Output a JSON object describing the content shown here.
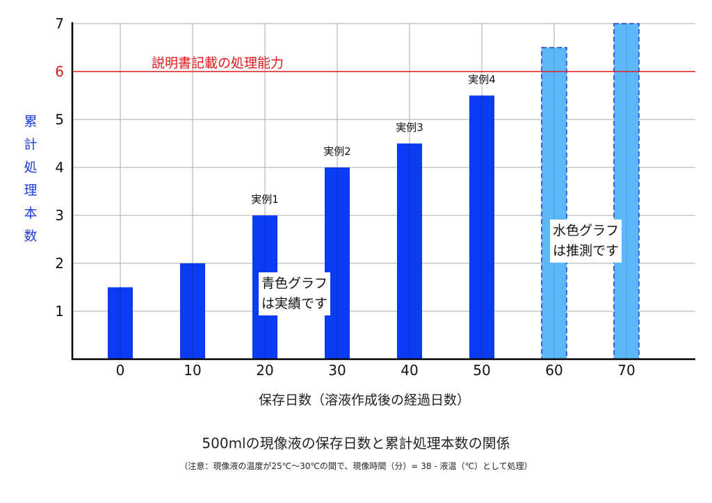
{
  "chart_data": {
    "type": "bar",
    "title": "500mlの現像液の保存日数と累計処理本数の関係",
    "subtitle": "（注意：現像液の温度が25℃〜30℃の間で、現像時間（分）= 38 -  液温（℃）として処理）",
    "xlabel": "保存日数（溶液作成後の経過日数）",
    "ylabel": "累計処理本数",
    "categories": [
      "0",
      "10",
      "20",
      "30",
      "40",
      "50",
      "60",
      "70"
    ],
    "ylim": [
      0,
      7
    ],
    "yticks": [
      "1",
      "2",
      "3",
      "4",
      "5",
      "6",
      "7"
    ],
    "grid": true,
    "series": [
      {
        "values": [
          1.5,
          2,
          3,
          4,
          4.5,
          5.5,
          null,
          null
        ],
        "color": "#0a3cf5"
      },
      {
        "values": [
          null,
          null,
          null,
          null,
          null,
          null,
          6.5,
          7
        ],
        "color": "#5db8f7"
      }
    ],
    "bar_labels": [
      "",
      "",
      "実例1",
      "実例2",
      "実例3",
      "実例4",
      "",
      ""
    ],
    "reference_line": {
      "value": 6,
      "label": "説明書記載の処理能力",
      "color": "#e01818"
    },
    "annotations": [
      {
        "lines": [
          "青色グラフ",
          "は実績です"
        ]
      },
      {
        "lines": [
          "水色グラフ",
          "は推測です"
        ]
      }
    ]
  }
}
